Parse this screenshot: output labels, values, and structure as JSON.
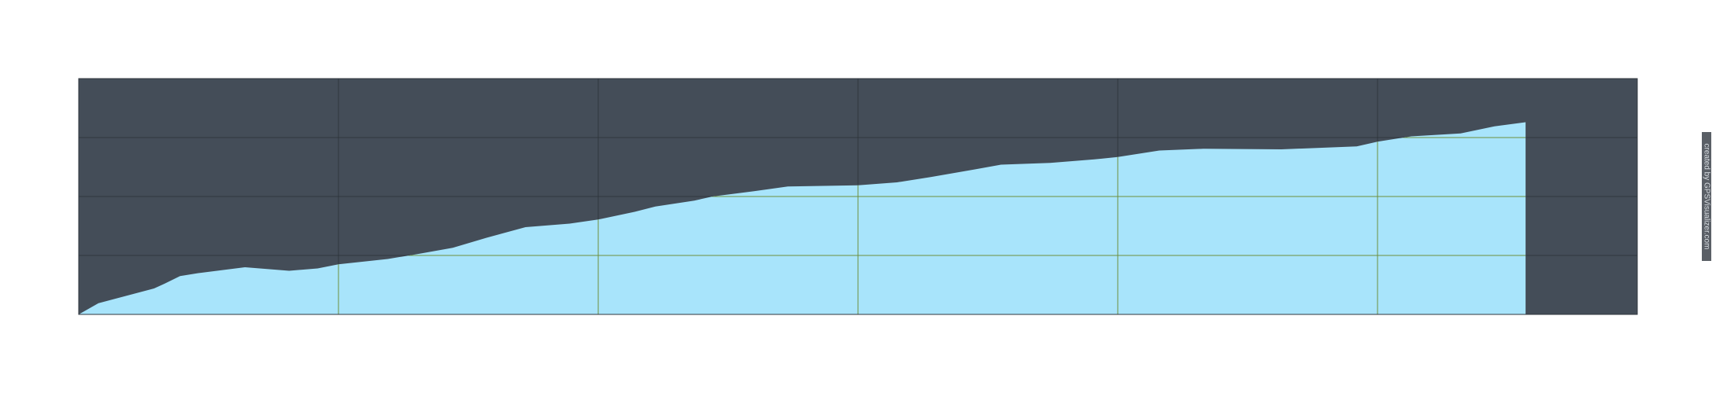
{
  "chart_data": {
    "type": "area",
    "x": [
      0,
      0.076,
      0.29,
      0.33,
      0.39,
      0.46,
      0.64,
      0.81,
      0.92,
      1.0,
      1.19,
      1.3,
      1.44,
      1.57,
      1.72,
      1.89,
      2.0,
      2.14,
      2.22,
      2.37,
      2.44,
      2.6,
      2.73,
      3.0,
      3.15,
      3.28,
      3.45,
      3.55,
      3.74,
      3.91,
      4.0,
      4.16,
      4.33,
      4.63,
      4.92,
      5.0,
      5.13,
      5.32,
      5.45,
      5.57
    ],
    "values": [
      0,
      0.19,
      0.44,
      0.52,
      0.65,
      0.7,
      0.8,
      0.74,
      0.78,
      0.85,
      0.94,
      1.02,
      1.13,
      1.3,
      1.48,
      1.54,
      1.61,
      1.74,
      1.83,
      1.93,
      2.0,
      2.09,
      2.17,
      2.19,
      2.24,
      2.33,
      2.46,
      2.54,
      2.57,
      2.63,
      2.67,
      2.78,
      2.81,
      2.8,
      2.85,
      2.93,
      3.02,
      3.07,
      3.19,
      3.26
    ],
    "color": "#a8e4fb",
    "background": "#444d58",
    "xlim": [
      0,
      6
    ],
    "xticks": [
      0,
      1,
      2,
      3,
      4,
      5,
      6
    ],
    "ylim": [
      0,
      4
    ],
    "yticks": [
      0,
      1,
      2,
      3,
      4
    ],
    "grid": true,
    "watermark": "created by GPSVisualizer.com"
  }
}
